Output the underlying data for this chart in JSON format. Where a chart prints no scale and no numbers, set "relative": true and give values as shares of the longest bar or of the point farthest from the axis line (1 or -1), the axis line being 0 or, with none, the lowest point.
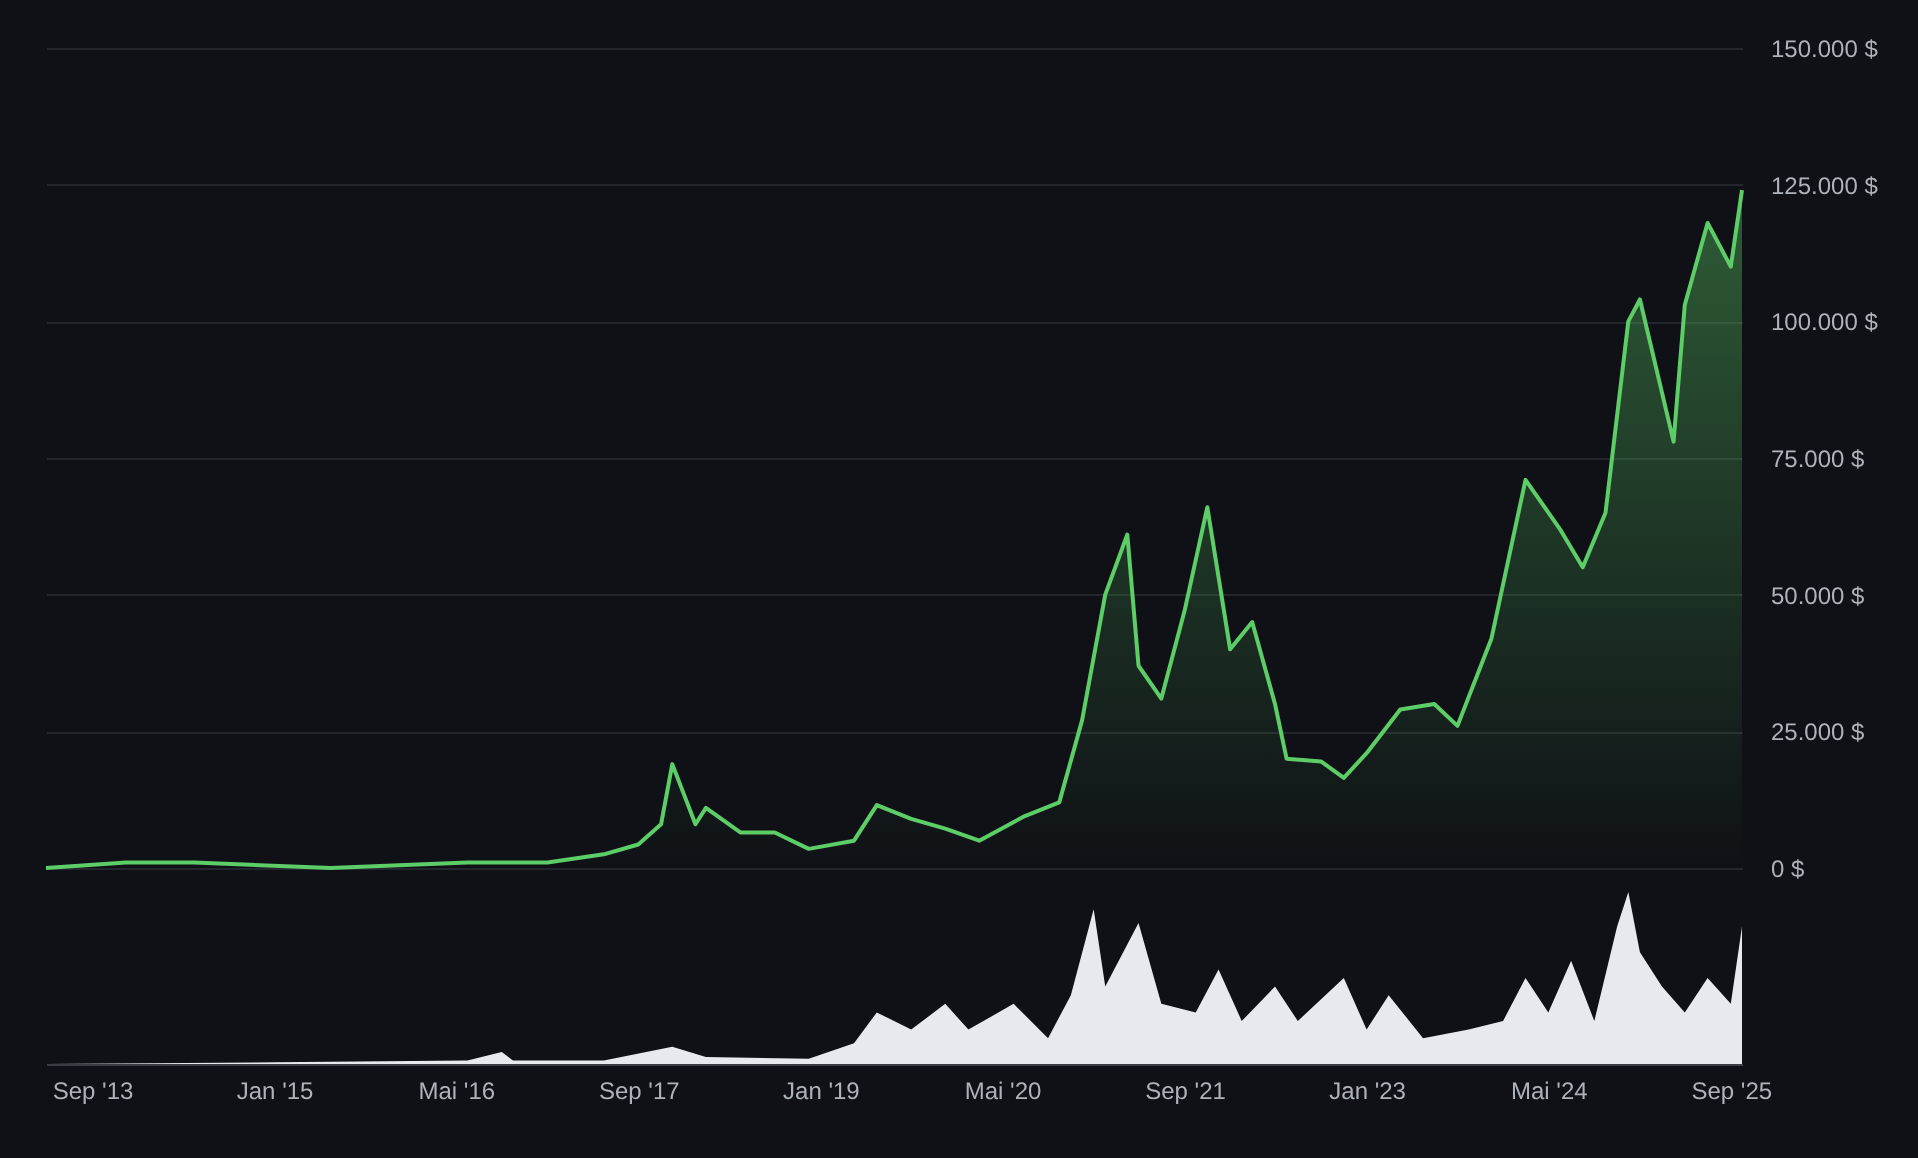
{
  "chart_data": [
    {
      "type": "area",
      "x": [
        "2013-05",
        "2013-12",
        "2014-06",
        "2015-06",
        "2016-06",
        "2017-01",
        "2017-06",
        "2017-09",
        "2017-11",
        "2017-12",
        "2018-02",
        "2018-03",
        "2018-06",
        "2018-09",
        "2018-12",
        "2019-04",
        "2019-06",
        "2019-09",
        "2019-12",
        "2020-03",
        "2020-07",
        "2020-10",
        "2020-12",
        "2021-02",
        "2021-04",
        "2021-05",
        "2021-07",
        "2021-09",
        "2021-11",
        "2022-01",
        "2022-03",
        "2022-05",
        "2022-06",
        "2022-09",
        "2022-11",
        "2023-01",
        "2023-04",
        "2023-07",
        "2023-09",
        "2023-12",
        "2024-03",
        "2024-06",
        "2024-08",
        "2024-10",
        "2024-12",
        "2025-01",
        "2025-04",
        "2025-05",
        "2025-07",
        "2025-09",
        "2025-10"
      ],
      "series": [
        {
          "color": "#5ccd67",
          "values": [
            0,
            1000,
            1000,
            0,
            1000,
            1000,
            2500,
            4300,
            8000,
            19000,
            8000,
            11000,
            6500,
            6500,
            3500,
            5000,
            11500,
            9000,
            7200,
            5000,
            9500,
            12000,
            27000,
            50000,
            61000,
            37000,
            31000,
            47000,
            66000,
            40000,
            45000,
            30000,
            20000,
            19500,
            16500,
            21000,
            29000,
            30000,
            26000,
            42000,
            71000,
            62000,
            55000,
            65000,
            100000,
            104000,
            78000,
            103000,
            118000,
            110000,
            124000
          ]
        }
      ],
      "xlim": [
        "2013-05",
        "2025-10"
      ],
      "ylim": [
        0,
        150000
      ],
      "yticks": [
        {
          "value": 0,
          "label": "0 $"
        },
        {
          "value": 25000,
          "label": "25.000 $"
        },
        {
          "value": 50000,
          "label": "50.000 $"
        },
        {
          "value": 75000,
          "label": "75.000 $"
        },
        {
          "value": 100000,
          "label": "100.000 $"
        },
        {
          "value": 125000,
          "label": "125.000 $"
        },
        {
          "value": 150000,
          "label": "150.000 $"
        }
      ],
      "grid": "y",
      "tick_labels": "y"
    },
    {
      "type": "area",
      "relative": true,
      "x": [
        "2013-05",
        "2015-01",
        "2016-06",
        "2016-09",
        "2016-10",
        "2017-06",
        "2017-12",
        "2018-03",
        "2018-12",
        "2019-04",
        "2019-06",
        "2019-09",
        "2019-12",
        "2020-02",
        "2020-06",
        "2020-09",
        "2020-11",
        "2021-01",
        "2021-02",
        "2021-05",
        "2021-07",
        "2021-10",
        "2021-12",
        "2022-02",
        "2022-05",
        "2022-07",
        "2022-11",
        "2023-01",
        "2023-03",
        "2023-06",
        "2023-10",
        "2024-01",
        "2024-03",
        "2024-05",
        "2024-07",
        "2024-09",
        "2024-11",
        "2024-12",
        "2025-01",
        "2025-03",
        "2025-05",
        "2025-07",
        "2025-09",
        "2025-10"
      ],
      "series": [
        {
          "color": "#e8e9ee",
          "values": [
            0,
            0.01,
            0.02,
            0.07,
            0.02,
            0.02,
            0.1,
            0.04,
            0.03,
            0.12,
            0.3,
            0.2,
            0.35,
            0.2,
            0.35,
            0.15,
            0.4,
            0.9,
            0.45,
            0.82,
            0.35,
            0.3,
            0.55,
            0.25,
            0.45,
            0.25,
            0.5,
            0.2,
            0.4,
            0.15,
            0.2,
            0.25,
            0.5,
            0.3,
            0.6,
            0.25,
            0.8,
            1,
            0.65,
            0.45,
            0.3,
            0.5,
            0.35,
            0.8
          ]
        }
      ],
      "xlim": [
        "2013-05",
        "2025-10"
      ],
      "xticks": [
        {
          "value": "2013-09",
          "label": "Sep '13"
        },
        {
          "value": "2015-01",
          "label": "Jan '15"
        },
        {
          "value": "2016-05",
          "label": "Mai '16"
        },
        {
          "value": "2017-09",
          "label": "Sep '17"
        },
        {
          "value": "2019-01",
          "label": "Jan '19"
        },
        {
          "value": "2020-05",
          "label": "Mai '20"
        },
        {
          "value": "2021-09",
          "label": "Sep '21"
        },
        {
          "value": "2023-01",
          "label": "Jan '23"
        },
        {
          "value": "2024-05",
          "label": "Mai '24"
        },
        {
          "value": "2025-09",
          "label": "Sep '25"
        }
      ],
      "tick_labels": "x"
    }
  ]
}
